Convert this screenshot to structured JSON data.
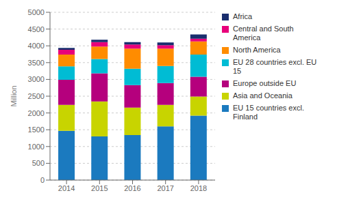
{
  "chart_data": {
    "type": "bar",
    "stacked": true,
    "categories": [
      "2014",
      "2015",
      "2016",
      "2017",
      "2018"
    ],
    "series": [
      {
        "name": "EU 15 countries excl.\nFinland",
        "color": "#1b7abf",
        "values": [
          1470,
          1300,
          1340,
          1600,
          1920
        ]
      },
      {
        "name": "Asia and Oceania",
        "color": "#c8d400",
        "values": [
          770,
          1040,
          820,
          640,
          570
        ]
      },
      {
        "name": "Europe outside EU",
        "color": "#b5007d",
        "values": [
          750,
          840,
          670,
          650,
          590
        ]
      },
      {
        "name": "EU 28 countries excl. EU\n15",
        "color": "#00bcd4",
        "values": [
          400,
          430,
          490,
          510,
          660
        ]
      },
      {
        "name": "North America",
        "color": "#ff8c00",
        "values": [
          350,
          370,
          600,
          520,
          390
        ]
      },
      {
        "name": "Central and South\nAmerica",
        "color": "#e8007a",
        "values": [
          140,
          130,
          120,
          100,
          80
        ]
      },
      {
        "name": "Africa",
        "color": "#1a2e6e",
        "values": [
          60,
          70,
          70,
          80,
          130
        ]
      }
    ],
    "ylabel": "Million",
    "ylim": [
      0,
      5000
    ],
    "yticks": [
      0,
      500,
      1000,
      1500,
      2000,
      2500,
      3000,
      3500,
      4000,
      4500,
      5000
    ],
    "grid": true,
    "legend": "right"
  }
}
